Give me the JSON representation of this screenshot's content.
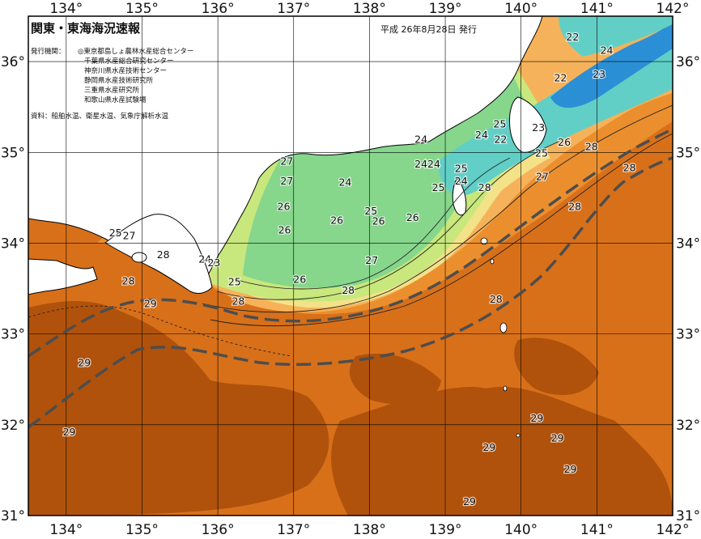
{
  "title": "関東・東海海況速報",
  "issue_date": "平成 26年8月28日 発行",
  "publisher": {
    "label": "発行機関：",
    "institutions": [
      "◎東京都島しょ農林水産総合センター",
      "千葉県水産総合研究センター",
      "神奈川県水産技術センター",
      "静岡県水産技術研究所",
      "三重県水産研究所",
      "和歌山県水産試験場"
    ]
  },
  "sources": "資料：船舶水温、衛星水温、気象庁解析水温",
  "axes": {
    "lon_labels": [
      "134°",
      "135°",
      "136°",
      "137°",
      "138°",
      "139°",
      "140°",
      "141°",
      "142°"
    ],
    "lat_labels": [
      "36°",
      "35°",
      "34°",
      "33°",
      "32°",
      "31°"
    ],
    "lon_range": [
      133.5,
      142.0
    ],
    "lat_range": [
      31.0,
      36.5
    ]
  },
  "colors": {
    "temp_29": "#b0520c",
    "temp_28": "#d8701a",
    "temp_27": "#eb8f2e",
    "temp_26": "#f6b25a",
    "temp_25_26": "#f3e288",
    "temp_25": "#c8e77c",
    "temp_24": "#86d68c",
    "temp_23": "#62cfc6",
    "temp_22": "#2b8fd6",
    "land": "#ffffff",
    "kuroshio_axis": "#4d4d4d"
  },
  "isotherm_labels": [
    {
      "text": "22",
      "lon": 140.68,
      "lat": 36.27
    },
    {
      "text": "24",
      "lon": 141.13,
      "lat": 36.12
    },
    {
      "text": "22",
      "lon": 140.52,
      "lat": 35.82
    },
    {
      "text": "23",
      "lon": 141.03,
      "lat": 35.86
    },
    {
      "text": "25",
      "lon": 139.72,
      "lat": 35.31
    },
    {
      "text": "23",
      "lon": 140.23,
      "lat": 35.27
    },
    {
      "text": "24",
      "lon": 139.48,
      "lat": 35.19
    },
    {
      "text": "22",
      "lon": 139.73,
      "lat": 35.14
    },
    {
      "text": "26",
      "lon": 140.57,
      "lat": 35.11
    },
    {
      "text": "28",
      "lon": 140.93,
      "lat": 35.06
    },
    {
      "text": "25",
      "lon": 140.27,
      "lat": 34.99
    },
    {
      "text": "28",
      "lon": 141.43,
      "lat": 34.83
    },
    {
      "text": "24",
      "lon": 138.68,
      "lat": 35.14
    },
    {
      "text": "24",
      "lon": 138.68,
      "lat": 34.87
    },
    {
      "text": "24",
      "lon": 138.85,
      "lat": 34.87
    },
    {
      "text": "25",
      "lon": 139.21,
      "lat": 34.82
    },
    {
      "text": "27",
      "lon": 140.28,
      "lat": 34.73
    },
    {
      "text": "24",
      "lon": 139.21,
      "lat": 34.68
    },
    {
      "text": "25",
      "lon": 138.91,
      "lat": 34.61
    },
    {
      "text": "28",
      "lon": 139.52,
      "lat": 34.61
    },
    {
      "text": "27",
      "lon": 136.91,
      "lat": 34.9
    },
    {
      "text": "27",
      "lon": 136.91,
      "lat": 34.68
    },
    {
      "text": "24",
      "lon": 137.68,
      "lat": 34.67
    },
    {
      "text": "26",
      "lon": 136.87,
      "lat": 34.4
    },
    {
      "text": "28",
      "lon": 140.71,
      "lat": 34.4
    },
    {
      "text": "25",
      "lon": 138.02,
      "lat": 34.35
    },
    {
      "text": "26",
      "lon": 137.57,
      "lat": 34.25
    },
    {
      "text": "26",
      "lon": 138.12,
      "lat": 34.24
    },
    {
      "text": "26",
      "lon": 138.57,
      "lat": 34.28
    },
    {
      "text": "26",
      "lon": 136.88,
      "lat": 34.14
    },
    {
      "text": "25",
      "lon": 134.65,
      "lat": 34.11
    },
    {
      "text": "27",
      "lon": 134.83,
      "lat": 34.08
    },
    {
      "text": "28",
      "lon": 135.28,
      "lat": 33.87
    },
    {
      "text": "24",
      "lon": 135.83,
      "lat": 33.82
    },
    {
      "text": "23",
      "lon": 135.95,
      "lat": 33.78
    },
    {
      "text": "27",
      "lon": 138.03,
      "lat": 33.81
    },
    {
      "text": "28",
      "lon": 134.82,
      "lat": 33.58
    },
    {
      "text": "26",
      "lon": 137.08,
      "lat": 33.6
    },
    {
      "text": "25",
      "lon": 136.22,
      "lat": 33.57
    },
    {
      "text": "28",
      "lon": 137.72,
      "lat": 33.48
    },
    {
      "text": "28",
      "lon": 136.27,
      "lat": 33.36
    },
    {
      "text": "29",
      "lon": 135.11,
      "lat": 33.33
    },
    {
      "text": "28",
      "lon": 139.67,
      "lat": 33.38
    },
    {
      "text": "29",
      "lon": 134.24,
      "lat": 32.68
    },
    {
      "text": "29",
      "lon": 140.21,
      "lat": 32.07
    },
    {
      "text": "29",
      "lon": 134.04,
      "lat": 31.92
    },
    {
      "text": "29",
      "lon": 140.48,
      "lat": 31.85
    },
    {
      "text": "29",
      "lon": 139.58,
      "lat": 31.75
    },
    {
      "text": "29",
      "lon": 140.65,
      "lat": 31.51
    },
    {
      "text": "29",
      "lon": 139.32,
      "lat": 31.15
    }
  ]
}
